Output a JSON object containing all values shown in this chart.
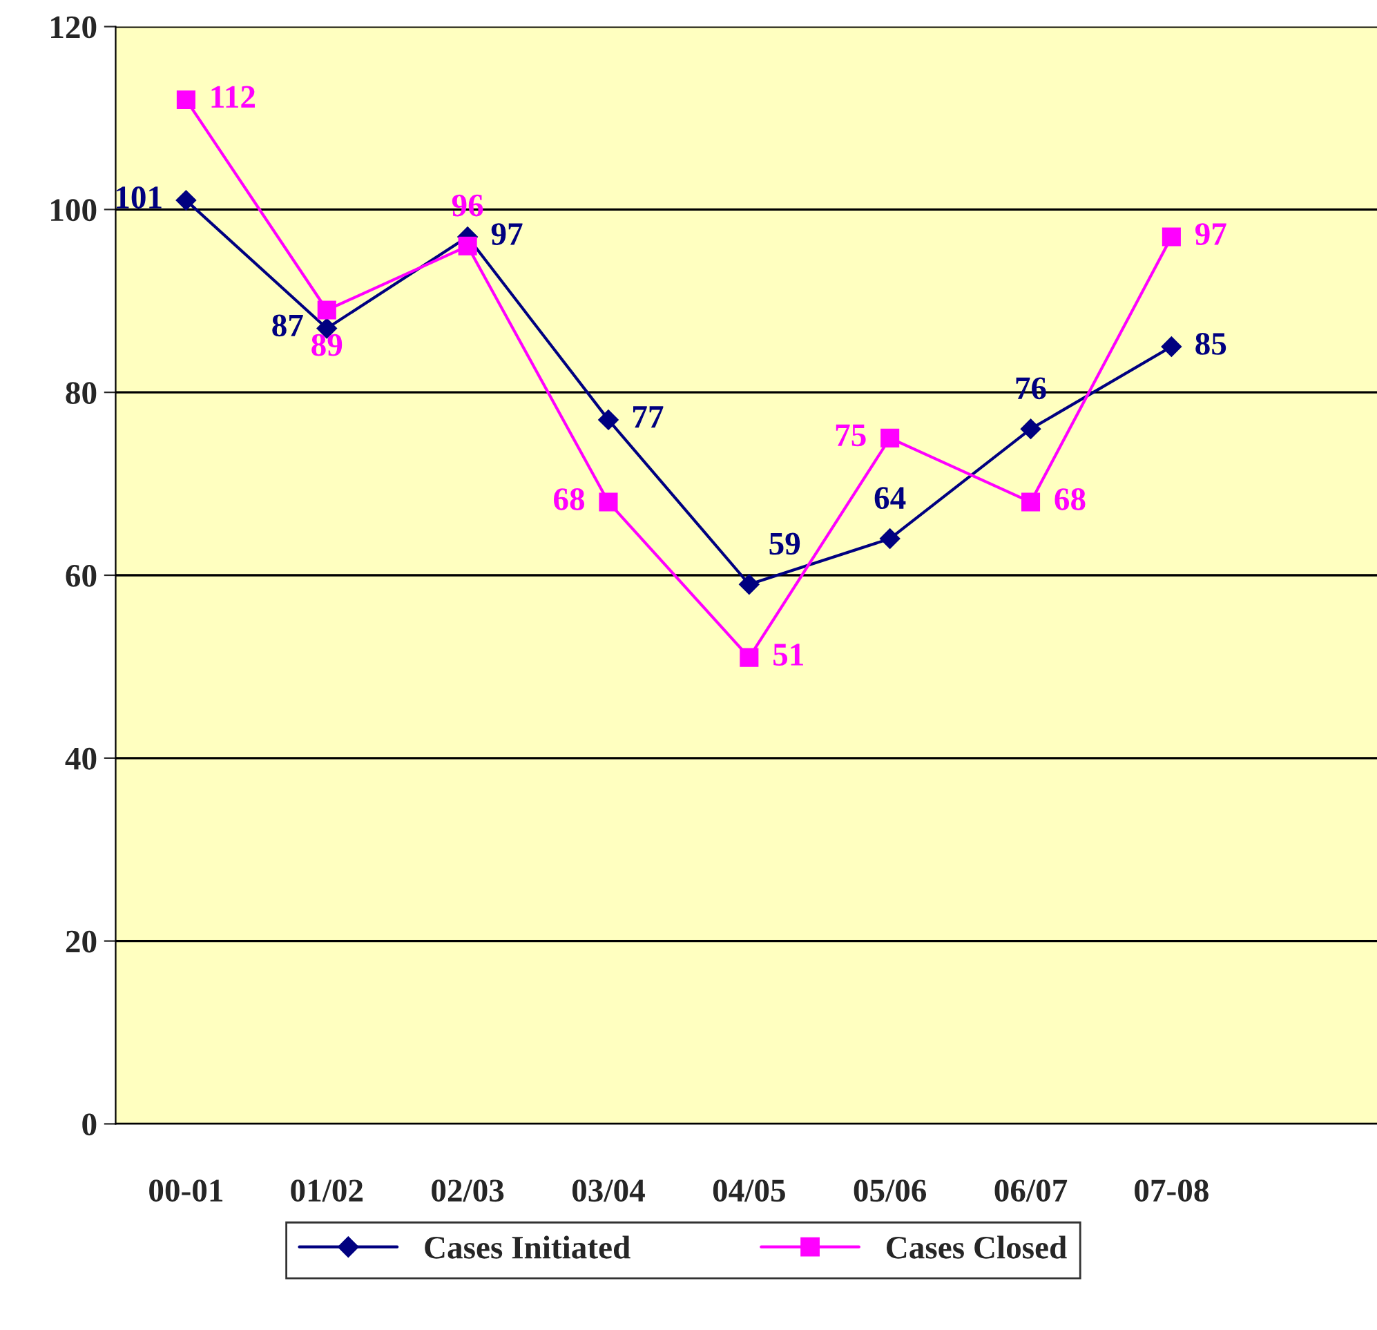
{
  "chart_data": {
    "type": "line",
    "categories": [
      "00-01",
      "01/02",
      "02/03",
      "03/04",
      "04/05",
      "05/06",
      "06/07",
      "07-08"
    ],
    "series": [
      {
        "name": "Cases Initiated",
        "color": "#000080",
        "marker": "diamond",
        "values": [
          101,
          87,
          97,
          77,
          59,
          64,
          76,
          85
        ]
      },
      {
        "name": "Cases Closed",
        "color": "#ff00ff",
        "marker": "square",
        "values": [
          112,
          89,
          96,
          68,
          51,
          75,
          68,
          97
        ]
      }
    ],
    "ylim": [
      0,
      120
    ],
    "yticks": [
      0,
      20,
      40,
      60,
      80,
      100,
      120
    ],
    "grid": "y",
    "legend": "bottom",
    "data_labels": true,
    "line_style": "solid"
  }
}
